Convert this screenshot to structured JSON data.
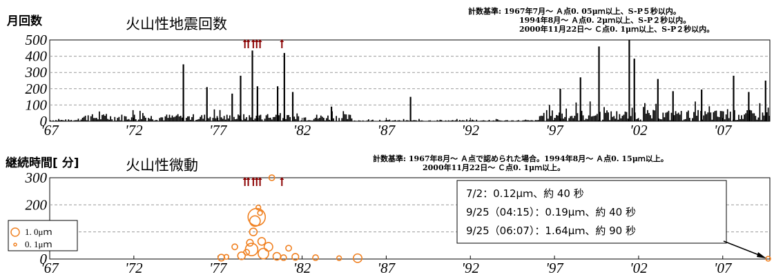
{
  "colors": {
    "bar": "#000000",
    "bubble": "#f08020",
    "arrow": "#8b0000",
    "grid": "#999999"
  },
  "top": {
    "ylabel": "月回数",
    "title": "火山性地震回数",
    "criteria": [
      "計数基準: 1967年7月～ Ａ点0. 05μｍ以上、S-P５秒以内。",
      "1994年8月～ Ａ点0. 2μｍ以上、S-P２秒以内。",
      "2000年11月22日～ Ｃ点0. 1μｍ以上、S-P２秒以内。"
    ]
  },
  "bottom": {
    "ylabel": "継続時間[ 分]",
    "title": "火山性微動",
    "criteria": [
      "計数基準: 1967年8月～ Ａ点で認められた場合。1994年8月～ Ａ点0. 15μｍ以上。",
      "2000年11月22日～ Ｃ点0. 1μｍ以上。"
    ],
    "legend": [
      "1. 0μｍ",
      "0. 1μｍ"
    ],
    "annotation": [
      "7/2：0.12μｍ、約 40 秒",
      "9/25（04:15）：0.19μｍ、約 40 秒",
      "9/25（06:07）：1.64μｍ、約 90 秒"
    ]
  },
  "chart_data": [
    {
      "type": "bar",
      "title": "火山性地震回数",
      "ylabel": "月回数",
      "ylim": [
        0,
        500
      ],
      "yticks": [
        "0",
        "100",
        "200",
        "300",
        "400",
        "500"
      ],
      "xticks": [
        "'67",
        "'72",
        "'77",
        "'82",
        "'87",
        "'92",
        "'97",
        "'02",
        "'07"
      ],
      "xlim": [
        1967.0,
        2009.8
      ],
      "grid": true,
      "eruption_markers_x": [
        1978.6,
        1978.8,
        1979.1,
        1979.3,
        1979.5,
        1980.8
      ],
      "peaks": [
        {
          "x": 1974.9,
          "y": 350
        },
        {
          "x": 1976.3,
          "y": 210
        },
        {
          "x": 1977.8,
          "y": 170
        },
        {
          "x": 1978.3,
          "y": 280
        },
        {
          "x": 1979.0,
          "y": 435
        },
        {
          "x": 1979.3,
          "y": 215
        },
        {
          "x": 1980.5,
          "y": 215
        },
        {
          "x": 1980.9,
          "y": 420
        },
        {
          "x": 1981.4,
          "y": 180
        },
        {
          "x": 1983.7,
          "y": 90
        },
        {
          "x": 1988.4,
          "y": 150
        },
        {
          "x": 1997.3,
          "y": 200
        },
        {
          "x": 1998.5,
          "y": 270
        },
        {
          "x": 1999.6,
          "y": 460
        },
        {
          "x": 2001.4,
          "y": 500
        },
        {
          "x": 2001.7,
          "y": 385
        },
        {
          "x": 2003.1,
          "y": 260
        },
        {
          "x": 2004.0,
          "y": 185
        },
        {
          "x": 2005.7,
          "y": 195
        },
        {
          "x": 2007.6,
          "y": 280
        },
        {
          "x": 2008.5,
          "y": 180
        },
        {
          "x": 2009.5,
          "y": 250
        }
      ]
    },
    {
      "type": "scatter",
      "title": "火山性微動",
      "ylabel": "継続時間[ 分]",
      "ylim": [
        0,
        300
      ],
      "yticks": [
        "0",
        "100",
        "200",
        "300"
      ],
      "xticks": [
        "'67",
        "'72",
        "'77",
        "'82",
        "'87",
        "'92",
        "'97",
        "'02",
        "'07"
      ],
      "xlim": [
        1967.0,
        2009.8
      ],
      "grid": true,
      "eruption_markers_x": [
        1978.6,
        1978.8,
        1979.1,
        1979.3,
        1979.5,
        1980.8
      ],
      "points": [
        {
          "x": 1977.2,
          "y": 5,
          "amp": 0.4
        },
        {
          "x": 1977.5,
          "y": 8,
          "amp": 0.2
        },
        {
          "x": 1978.0,
          "y": 45,
          "amp": 0.3
        },
        {
          "x": 1978.4,
          "y": 12,
          "amp": 0.5
        },
        {
          "x": 1978.7,
          "y": 25,
          "amp": 0.3
        },
        {
          "x": 1978.9,
          "y": 60,
          "amp": 0.4
        },
        {
          "x": 1979.0,
          "y": 35,
          "amp": 1.0
        },
        {
          "x": 1979.1,
          "y": 100,
          "amp": 0.5
        },
        {
          "x": 1979.2,
          "y": 140,
          "amp": 0.8
        },
        {
          "x": 1979.3,
          "y": 155,
          "amp": 1.5
        },
        {
          "x": 1979.4,
          "y": 190,
          "amp": 0.2
        },
        {
          "x": 1979.5,
          "y": 170,
          "amp": 0.2
        },
        {
          "x": 1979.6,
          "y": 65,
          "amp": 0.5
        },
        {
          "x": 1979.7,
          "y": 20,
          "amp": 0.8
        },
        {
          "x": 1980.0,
          "y": 45,
          "amp": 0.6
        },
        {
          "x": 1980.2,
          "y": 300,
          "amp": 0.3
        },
        {
          "x": 1980.5,
          "y": 10,
          "amp": 0.5
        },
        {
          "x": 1980.9,
          "y": 5,
          "amp": 0.3
        },
        {
          "x": 1981.2,
          "y": 40,
          "amp": 0.3
        },
        {
          "x": 1981.6,
          "y": 8,
          "amp": 0.4
        },
        {
          "x": 1982.8,
          "y": 5,
          "amp": 0.3
        },
        {
          "x": 1984.2,
          "y": 3,
          "amp": 0.2
        },
        {
          "x": 1985.3,
          "y": 3,
          "amp": 0.6
        },
        {
          "x": 2009.7,
          "y": 1,
          "amp": 0.2
        }
      ]
    }
  ]
}
